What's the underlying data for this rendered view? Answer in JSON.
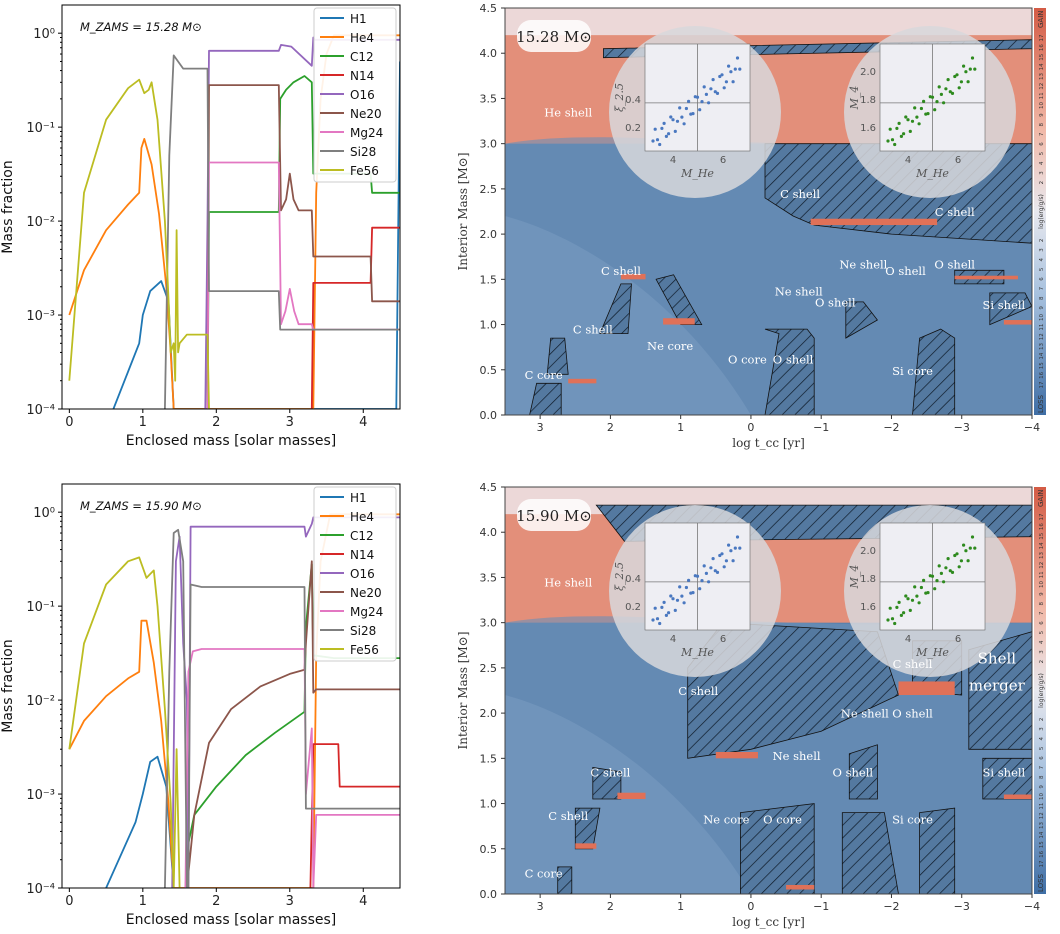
{
  "chart_data": [
    {
      "type": "line",
      "panel": "top-left",
      "annotation": "M_ZAMS = 15.28 M_sun",
      "xlabel": "Enclosed mass [solar masses]",
      "ylabel": "Mass fraction",
      "xlim": [
        -0.1,
        4.5
      ],
      "ylim_log10": [
        -4,
        0.3
      ],
      "xticks": [
        "0",
        "1",
        "2",
        "3",
        "4"
      ],
      "yticks": [
        "10^-4",
        "10^-3",
        "10^-2",
        "10^-1",
        "10^0"
      ],
      "legend": [
        "H1",
        "He4",
        "C12",
        "N14",
        "O16",
        "Ne20",
        "Mg24",
        "Si28",
        "Fe56"
      ],
      "legend_position": "top-right",
      "series": [
        {
          "name": "H1",
          "color": "#1f77b4",
          "x": [
            0.6,
            0.95,
            1.0,
            1.1,
            1.25,
            1.35,
            1.42,
            4.45,
            4.5
          ],
          "y": [
            0.0001,
            0.0005,
            0.001,
            0.0018,
            0.0023,
            0.0014,
            0.0001,
            0.0001,
            0.5
          ]
        },
        {
          "name": "He4",
          "color": "#ff7f0e",
          "x": [
            0.0,
            0.2,
            0.5,
            0.8,
            0.95,
            0.98,
            1.02,
            1.12,
            1.22,
            1.32,
            1.38,
            1.42,
            3.32,
            3.36,
            3.42,
            3.5,
            3.6,
            4.5
          ],
          "y": [
            0.001,
            0.003,
            0.008,
            0.015,
            0.02,
            0.06,
            0.075,
            0.04,
            0.012,
            0.002,
            0.0004,
            0.0001,
            0.0001,
            0.02,
            0.2,
            0.6,
            0.95,
            0.95
          ]
        },
        {
          "name": "C12",
          "color": "#2ca02c",
          "x": [
            1.88,
            1.9,
            2.85,
            2.87,
            2.95,
            3.05,
            3.2,
            3.3,
            3.32,
            4.1,
            4.12,
            4.5
          ],
          "y": [
            0.0001,
            0.0125,
            0.0125,
            0.2,
            0.25,
            0.3,
            0.35,
            0.3,
            0.032,
            0.032,
            0.02,
            0.02
          ]
        },
        {
          "name": "N14",
          "color": "#d62728",
          "x": [
            3.3,
            3.32,
            4.1,
            4.12,
            4.5
          ],
          "y": [
            0.0001,
            0.0022,
            0.0022,
            0.0085,
            0.0085
          ]
        },
        {
          "name": "O16",
          "color": "#9467bd",
          "x": [
            1.85,
            1.88,
            1.9,
            2.85,
            2.88,
            3.02,
            3.3,
            3.32,
            3.34,
            4.5
          ],
          "y": [
            0.0001,
            0.01,
            0.65,
            0.65,
            0.75,
            0.72,
            0.45,
            0.9,
            0.85,
            0.85
          ]
        },
        {
          "name": "Ne20",
          "color": "#8c564b",
          "x": [
            1.88,
            1.9,
            2.85,
            2.88,
            2.95,
            3.0,
            3.05,
            3.12,
            3.3,
            3.32,
            4.1,
            4.12,
            4.5
          ],
          "y": [
            0.0001,
            0.28,
            0.28,
            0.013,
            0.017,
            0.032,
            0.017,
            0.013,
            0.013,
            0.0042,
            0.0042,
            0.0014,
            0.0014
          ]
        },
        {
          "name": "Mg24",
          "color": "#e377c2",
          "x": [
            1.88,
            1.9,
            2.85,
            2.88,
            2.94,
            3.0,
            3.06,
            3.12,
            3.3,
            3.32,
            4.5
          ],
          "y": [
            0.0001,
            0.042,
            0.042,
            0.0008,
            0.0011,
            0.0019,
            0.0011,
            0.0008,
            0.0008,
            0.0007,
            0.0007
          ]
        },
        {
          "name": "Si28",
          "color": "#7f7f7f",
          "x": [
            1.3,
            1.36,
            1.42,
            1.48,
            1.55,
            1.65,
            1.85,
            1.88,
            1.9,
            2.85,
            2.87,
            4.5
          ],
          "y": [
            0.0001,
            0.05,
            0.58,
            0.5,
            0.42,
            0.42,
            0.42,
            0.42,
            0.0018,
            0.0018,
            0.0007,
            0.0007
          ]
        },
        {
          "name": "Fe56",
          "color": "#bcbd22",
          "x": [
            0.0,
            0.2,
            0.5,
            0.8,
            0.95,
            1.02,
            1.08,
            1.12,
            1.2,
            1.3,
            1.35,
            1.38,
            1.42,
            1.44,
            1.46,
            1.48,
            1.5,
            1.6,
            1.88,
            1.9
          ],
          "y": [
            0.0002,
            0.02,
            0.12,
            0.26,
            0.32,
            0.23,
            0.25,
            0.3,
            0.12,
            0.01,
            0.0015,
            0.0004,
            0.0005,
            0.0002,
            0.008,
            0.0004,
            0.0005,
            0.00062,
            0.00062,
            0.0001
          ]
        }
      ]
    },
    {
      "type": "line",
      "panel": "bottom-left",
      "annotation": "M_ZAMS = 15.90 M_sun",
      "xlabel": "Enclosed mass [solar masses]",
      "ylabel": "Mass fraction",
      "xlim": [
        -0.1,
        4.5
      ],
      "ylim_log10": [
        -4,
        0.3
      ],
      "xticks": [
        "0",
        "1",
        "2",
        "3",
        "4"
      ],
      "yticks": [
        "10^-4",
        "10^-3",
        "10^-2",
        "10^-1",
        "10^0"
      ],
      "legend": [
        "H1",
        "He4",
        "C12",
        "N14",
        "O16",
        "Ne20",
        "Mg24",
        "Si28",
        "Fe56"
      ],
      "legend_position": "top-right",
      "series": [
        {
          "name": "H1",
          "color": "#1f77b4",
          "x": [
            0.5,
            0.9,
            1.0,
            1.1,
            1.2,
            1.32,
            1.42
          ],
          "y": [
            0.0001,
            0.0005,
            0.001,
            0.0022,
            0.0025,
            0.0012,
            0.0001
          ]
        },
        {
          "name": "He4",
          "color": "#ff7f0e",
          "x": [
            0.0,
            0.2,
            0.5,
            0.8,
            0.95,
            0.98,
            1.05,
            1.15,
            1.25,
            1.35,
            1.42,
            3.32,
            3.36,
            3.42,
            3.55,
            4.5
          ],
          "y": [
            0.003,
            0.006,
            0.011,
            0.017,
            0.02,
            0.07,
            0.07,
            0.025,
            0.006,
            0.0008,
            0.0001,
            0.0001,
            0.03,
            0.3,
            0.95,
            0.95
          ]
        },
        {
          "name": "C12",
          "color": "#2ca02c",
          "x": [
            1.58,
            1.62,
            1.7,
            2.0,
            2.4,
            2.8,
            3.2,
            3.22,
            3.3,
            3.32,
            3.6,
            4.5
          ],
          "y": [
            0.0001,
            0.0003,
            0.0006,
            0.0012,
            0.0026,
            0.0045,
            0.0075,
            0.06,
            0.28,
            0.03,
            0.028,
            0.028
          ]
        },
        {
          "name": "N14",
          "color": "#d62728",
          "x": [
            3.28,
            3.32,
            3.66,
            3.68,
            4.5
          ],
          "y": [
            0.0001,
            0.0034,
            0.0034,
            0.0012,
            0.0012
          ]
        },
        {
          "name": "O16",
          "color": "#9467bd",
          "x": [
            1.4,
            1.45,
            1.5,
            1.55,
            1.6,
            1.62,
            1.65,
            3.2,
            3.22,
            3.3,
            3.32,
            4.5
          ],
          "y": [
            0.0001,
            0.3,
            0.55,
            0.04,
            0.01,
            0.0001,
            0.7,
            0.7,
            0.55,
            0.75,
            0.88,
            0.88
          ]
        },
        {
          "name": "Ne20",
          "color": "#8c564b",
          "x": [
            1.6,
            1.7,
            1.9,
            2.2,
            2.6,
            3.0,
            3.2,
            3.22,
            3.3,
            3.32,
            3.36,
            4.5
          ],
          "y": [
            0.0001,
            0.0006,
            0.0035,
            0.008,
            0.014,
            0.019,
            0.021,
            0.04,
            0.3,
            0.012,
            0.013,
            0.013
          ]
        },
        {
          "name": "Mg24",
          "color": "#e377c2",
          "x": [
            1.58,
            1.62,
            1.68,
            1.8,
            3.2,
            3.22,
            3.3,
            3.32,
            3.36,
            4.5
          ],
          "y": [
            0.0001,
            0.02,
            0.033,
            0.035,
            0.035,
            0.001,
            0.005,
            0.0001,
            0.0006,
            0.0006
          ]
        },
        {
          "name": "Si28",
          "color": "#7f7f7f",
          "x": [
            1.3,
            1.36,
            1.42,
            1.48,
            1.55,
            1.6,
            1.62,
            1.65,
            1.8,
            3.2,
            3.22,
            3.3,
            3.32,
            4.5
          ],
          "y": [
            0.0001,
            0.02,
            0.6,
            0.65,
            0.3,
            0.0001,
            0.0001,
            0.17,
            0.16,
            0.16,
            0.0007,
            0.0007,
            0.0007,
            0.0007
          ]
        },
        {
          "name": "Fe56",
          "color": "#bcbd22",
          "x": [
            0.0,
            0.2,
            0.5,
            0.8,
            0.95,
            1.05,
            1.1,
            1.15,
            1.2,
            1.3,
            1.38,
            1.42,
            1.46,
            1.5
          ],
          "y": [
            0.003,
            0.04,
            0.17,
            0.3,
            0.33,
            0.2,
            0.22,
            0.24,
            0.1,
            0.008,
            0.0008,
            0.0001,
            0.003,
            0.0001
          ]
        }
      ]
    },
    {
      "type": "area",
      "panel": "top-right",
      "subtype": "Kippenhahn diagram",
      "mass_label": "15.28 M_sun",
      "xlabel": "log t_cc [yr]",
      "ylabel": "Interior Mass [M_sun]",
      "xlim": [
        3.5,
        -4
      ],
      "ylim": [
        0,
        4.5
      ],
      "xticks": [
        "3",
        "2",
        "1",
        "0",
        "−1",
        "−2",
        "−3",
        "−4"
      ],
      "yticks": [
        "0.0",
        "0.5",
        "1.0",
        "1.5",
        "2.0",
        "2.5",
        "3.0",
        "3.5",
        "4.0",
        "4.5"
      ],
      "colorbar_label": "log(erg/g/s)",
      "colorbar_gain": "GAIN",
      "colorbar_loss": "LOSS",
      "colorbar_ticks": [
        "17",
        "16",
        "15",
        "14",
        "13",
        "12",
        "11",
        "10",
        "9",
        "8",
        "7",
        "6",
        "5",
        "4",
        "3",
        "2",
        "1",
        "0",
        "−1",
        "0",
        "1",
        "2",
        "3",
        "4",
        "5",
        "6",
        "7",
        "8",
        "9",
        "10",
        "11",
        "12",
        "13",
        "14",
        "15",
        "16",
        "17"
      ],
      "labels": [
        {
          "text": "He shell",
          "x": 2.6,
          "y": 3.3
        },
        {
          "text": "C shell",
          "x": -0.7,
          "y": 2.4
        },
        {
          "text": "C shell",
          "x": -2.9,
          "y": 2.2
        },
        {
          "text": "C shell",
          "x": 1.85,
          "y": 1.55
        },
        {
          "text": "C shell",
          "x": 2.25,
          "y": 0.9
        },
        {
          "text": "Ne shell",
          "x": -1.6,
          "y": 1.62
        },
        {
          "text": "O shell",
          "x": -2.2,
          "y": 1.55
        },
        {
          "text": "O shell",
          "x": -2.9,
          "y": 1.62
        },
        {
          "text": "Ne shell",
          "x": -0.68,
          "y": 1.32
        },
        {
          "text": "O shell",
          "x": -1.2,
          "y": 1.2
        },
        {
          "text": "Si shell",
          "x": -3.6,
          "y": 1.17
        },
        {
          "text": "Ne core",
          "x": 1.15,
          "y": 0.72
        },
        {
          "text": "O core",
          "x": 0.05,
          "y": 0.57
        },
        {
          "text": "O shell",
          "x": -0.6,
          "y": 0.57
        },
        {
          "text": "Si core",
          "x": -2.3,
          "y": 0.44
        },
        {
          "text": "C core",
          "x": 2.95,
          "y": 0.4
        }
      ],
      "inset_left": {
        "xlabel": "M_He",
        "ylabel": "ξ_2.5",
        "xticks": [
          "4",
          "6"
        ],
        "yticks": [
          "0.2",
          "0.4"
        ]
      },
      "inset_right": {
        "xlabel": "M_He",
        "ylabel": "M_4",
        "xticks": [
          "4",
          "6"
        ],
        "yticks": [
          "1.6",
          "1.8",
          "2.0"
        ]
      }
    },
    {
      "type": "area",
      "panel": "bottom-right",
      "subtype": "Kippenhahn diagram",
      "mass_label": "15.90 M_sun",
      "xlabel": "log t_cc [yr]",
      "ylabel": "Interior Mass [M_sun]",
      "xlim": [
        3.5,
        -4
      ],
      "ylim": [
        0,
        4.5
      ],
      "xticks": [
        "3",
        "2",
        "1",
        "0",
        "−1",
        "−2",
        "−3",
        "−4"
      ],
      "yticks": [
        "0.0",
        "0.5",
        "1.0",
        "1.5",
        "2.0",
        "2.5",
        "3.0",
        "3.5",
        "4.0",
        "4.5"
      ],
      "colorbar_label": "log(erg/g/s)",
      "colorbar_gain": "GAIN",
      "colorbar_loss": "LOSS",
      "colorbar_ticks": [
        "17",
        "16",
        "15",
        "14",
        "13",
        "12",
        "11",
        "10",
        "9",
        "8",
        "7",
        "6",
        "5",
        "4",
        "3",
        "2",
        "1",
        "0",
        "−1",
        "0",
        "1",
        "2",
        "3",
        "4",
        "5",
        "6",
        "7",
        "8",
        "9",
        "10",
        "11",
        "12",
        "13",
        "14",
        "15",
        "16",
        "17"
      ],
      "labels": [
        {
          "text": "He shell",
          "x": 2.6,
          "y": 3.4
        },
        {
          "text": "C shell",
          "x": -2.3,
          "y": 2.5
        },
        {
          "text": "C shell",
          "x": 0.75,
          "y": 2.2
        },
        {
          "text": "Shell",
          "x": -3.5,
          "y": 2.55,
          "large": true
        },
        {
          "text": "merger",
          "x": -3.5,
          "y": 2.25,
          "large": true
        },
        {
          "text": "Ne shell",
          "x": -1.62,
          "y": 1.95
        },
        {
          "text": "O shell",
          "x": -2.3,
          "y": 1.95
        },
        {
          "text": "Ne shell",
          "x": -0.65,
          "y": 1.48
        },
        {
          "text": "O shell",
          "x": -1.45,
          "y": 1.3
        },
        {
          "text": "Si shell",
          "x": -3.6,
          "y": 1.3
        },
        {
          "text": "C shell",
          "x": 2.0,
          "y": 1.3
        },
        {
          "text": "C shell",
          "x": 2.6,
          "y": 0.82
        },
        {
          "text": "Ne core",
          "x": 0.35,
          "y": 0.78
        },
        {
          "text": "O core",
          "x": -0.45,
          "y": 0.78
        },
        {
          "text": "Si core",
          "x": -2.3,
          "y": 0.78
        },
        {
          "text": "C core",
          "x": 2.95,
          "y": 0.18
        }
      ],
      "inset_left": {
        "xlabel": "M_He",
        "ylabel": "ξ_2.5",
        "xticks": [
          "4",
          "6"
        ],
        "yticks": [
          "0.2",
          "0.4"
        ]
      },
      "inset_right": {
        "xlabel": "M_He",
        "ylabel": "M_4",
        "xticks": [
          "4",
          "6"
        ],
        "yticks": [
          "1.6",
          "1.8",
          "2.0"
        ]
      }
    }
  ]
}
